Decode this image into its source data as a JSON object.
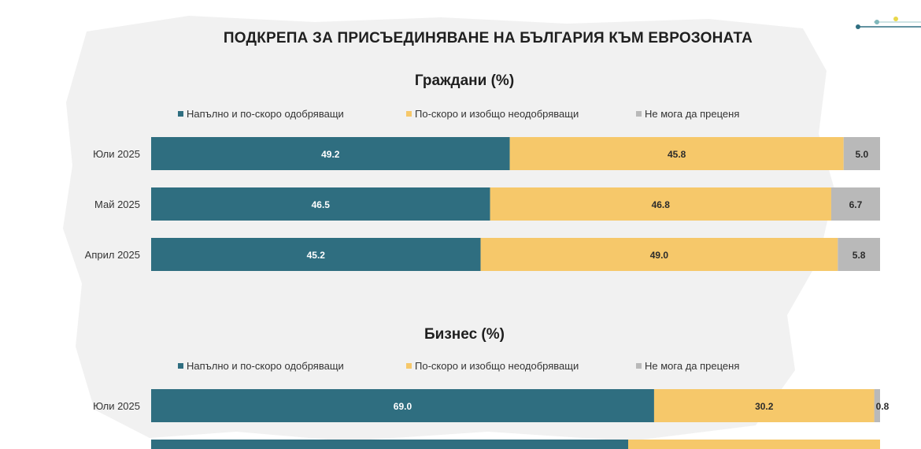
{
  "title": "ПОДКРЕПА ЗА ПРИСЪЕДИНЯВАНЕ НА БЪЛГАРИЯ КЪМ ЕВРОЗОНАТА",
  "colors": {
    "approve": "#2f6e80",
    "disapprove": "#f6c86a",
    "undecided": "#b9b9b9"
  },
  "chart_data": [
    {
      "type": "bar",
      "orientation": "horizontal",
      "stacked": true,
      "title": "Граждани (%)",
      "categories": [
        "Юли 2025",
        "Май 2025",
        "Април 2025"
      ],
      "series": [
        {
          "name": "Напълно и по-скоро одобряващи",
          "values": [
            49.2,
            46.5,
            45.2
          ]
        },
        {
          "name": "По-скоро и изобщо неодобряващи",
          "values": [
            45.8,
            46.8,
            49.0
          ]
        },
        {
          "name": "Не мога да преценя",
          "values": [
            5.0,
            6.7,
            5.8
          ]
        }
      ],
      "labels": [
        [
          "49.2",
          "46.5",
          "45.2"
        ],
        [
          "45.8",
          "46.8",
          "49.0"
        ],
        [
          "5.0",
          "6.7",
          "5.8"
        ]
      ],
      "xlim": [
        0,
        100
      ],
      "legend": "top",
      "grid": false
    },
    {
      "type": "bar",
      "orientation": "horizontal",
      "stacked": true,
      "title": "Бизнес (%)",
      "categories": [
        "Юли 2025"
      ],
      "series": [
        {
          "name": "Напълно и по-скоро одобряващи",
          "values": [
            69.0
          ]
        },
        {
          "name": "По-скоро и изобщо неодобряващи",
          "values": [
            30.2
          ]
        },
        {
          "name": "Не мога да преценя",
          "values": [
            0.8
          ]
        }
      ],
      "labels": [
        [
          "69.0"
        ],
        [
          "30.2"
        ],
        [
          "0.8"
        ]
      ],
      "xlim": [
        0,
        100
      ],
      "legend": "top",
      "grid": false
    }
  ]
}
